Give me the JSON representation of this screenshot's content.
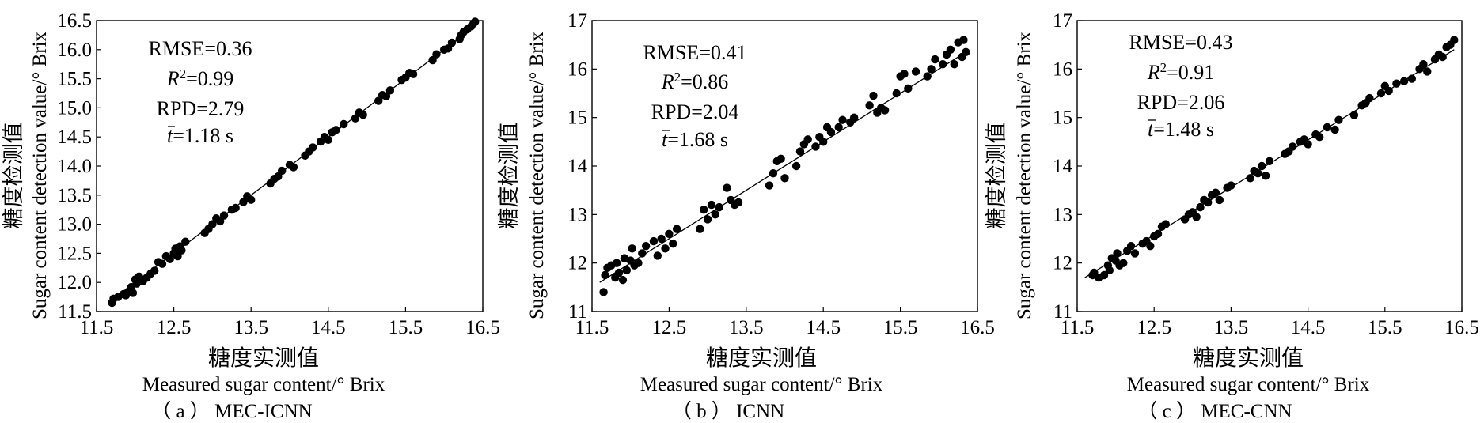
{
  "figure": {
    "panels": [
      {
        "caption": "（ a ）  MEC-ICNN",
        "stats": {
          "rmse": "RMSE=0.36",
          "r2_sym": "R",
          "r2_val": "=0.99",
          "rpd": "RPD=2.79",
          "t_sym": "t",
          "t_val": "=1.18 s"
        },
        "xlabel_cn": "糖度实测值",
        "xlabel_en": "Measured sugar content/° Brix",
        "ylabel_cn": "糖度检测值",
        "ylabel_en": "Sugar content detection value/° Brix",
        "xtick_labels": [
          "11.5",
          "12.5",
          "13.5",
          "14.5",
          "15.5",
          "16.5"
        ],
        "ytick_labels": [
          "11.5",
          "12.0",
          "12.5",
          "13.0",
          "13.5",
          "14.0",
          "14.5",
          "15.0",
          "15.5",
          "16.0",
          "16.5"
        ]
      },
      {
        "caption": "（ b ）  ICNN",
        "stats": {
          "rmse": "RMSE=0.41",
          "r2_sym": "R",
          "r2_val": "=0.86",
          "rpd": "RPD=2.04",
          "t_sym": "t",
          "t_val": "=1.68 s"
        },
        "xlabel_cn": "糖度实测值",
        "xlabel_en": "Measured sugar content/° Brix",
        "ylabel_cn": "糖度检测值",
        "ylabel_en": "Sugar content detection value/° Brix",
        "xtick_labels": [
          "11.5",
          "12.5",
          "13.5",
          "14.5",
          "15.5",
          "16.5"
        ],
        "ytick_labels": [
          "11",
          "12",
          "13",
          "14",
          "15",
          "16",
          "17"
        ]
      },
      {
        "caption": "（ c ）  MEC-CNN",
        "stats": {
          "rmse": "RMSE=0.43",
          "r2_sym": "R",
          "r2_val": "=0.91",
          "rpd": "RPD=2.06",
          "t_sym": "t",
          "t_val": "=1.48 s"
        },
        "xlabel_cn": "糖度实测值",
        "xlabel_en": "Measured sugar content/° Brix",
        "ylabel_cn": "糖度检测值",
        "ylabel_en": "Sugar content detection value/° Brix",
        "xtick_labels": [
          "11.5",
          "12.5",
          "13.5",
          "14.5",
          "15.5",
          "16.5"
        ],
        "ytick_labels": [
          "11",
          "12",
          "13",
          "14",
          "15",
          "16",
          "17"
        ]
      }
    ]
  },
  "chart_data": [
    {
      "type": "scatter",
      "title": "MEC-ICNN",
      "xlabel": "Measured sugar content/° Brix",
      "ylabel": "Sugar content detection value/° Brix",
      "xlim": [
        11.5,
        16.5
      ],
      "ylim": [
        11.5,
        16.5
      ],
      "xticks": [
        11.5,
        12.5,
        13.5,
        14.5,
        15.5,
        16.5
      ],
      "yticks": [
        11.5,
        12.0,
        12.5,
        13.0,
        13.5,
        14.0,
        14.5,
        15.0,
        15.5,
        16.0,
        16.5
      ],
      "annotations": [
        "RMSE=0.36",
        "R2=0.99",
        "RPD=2.79",
        "t=1.18 s"
      ],
      "fit_line": {
        "x": [
          11.7,
          16.4
        ],
        "y": [
          11.7,
          16.4
        ]
      },
      "marker_color": "#000000",
      "points": [
        [
          11.7,
          11.65
        ],
        [
          11.72,
          11.72
        ],
        [
          11.78,
          11.75
        ],
        [
          11.85,
          11.8
        ],
        [
          11.88,
          11.78
        ],
        [
          11.92,
          11.85
        ],
        [
          11.95,
          11.92
        ],
        [
          11.97,
          11.82
        ],
        [
          12.0,
          12.05
        ],
        [
          12.02,
          11.98
        ],
        [
          12.05,
          12.1
        ],
        [
          12.1,
          12.02
        ],
        [
          12.15,
          12.08
        ],
        [
          12.2,
          12.15
        ],
        [
          12.25,
          12.2
        ],
        [
          12.3,
          12.35
        ],
        [
          12.35,
          12.32
        ],
        [
          12.4,
          12.45
        ],
        [
          12.45,
          12.4
        ],
        [
          12.5,
          12.5
        ],
        [
          12.52,
          12.58
        ],
        [
          12.55,
          12.45
        ],
        [
          12.58,
          12.62
        ],
        [
          12.6,
          12.55
        ],
        [
          12.65,
          12.7
        ],
        [
          12.9,
          12.85
        ],
        [
          12.95,
          12.92
        ],
        [
          13.0,
          13.0
        ],
        [
          13.05,
          13.1
        ],
        [
          13.1,
          13.05
        ],
        [
          13.15,
          13.15
        ],
        [
          13.25,
          13.25
        ],
        [
          13.3,
          13.28
        ],
        [
          13.4,
          13.38
        ],
        [
          13.45,
          13.48
        ],
        [
          13.5,
          13.42
        ],
        [
          13.75,
          13.7
        ],
        [
          13.8,
          13.78
        ],
        [
          13.85,
          13.82
        ],
        [
          13.9,
          13.92
        ],
        [
          14.0,
          14.02
        ],
        [
          14.05,
          13.98
        ],
        [
          14.2,
          14.18
        ],
        [
          14.25,
          14.25
        ],
        [
          14.3,
          14.32
        ],
        [
          14.4,
          14.42
        ],
        [
          14.45,
          14.5
        ],
        [
          14.5,
          14.45
        ],
        [
          14.55,
          14.58
        ],
        [
          14.6,
          14.62
        ],
        [
          14.7,
          14.72
        ],
        [
          14.85,
          14.82
        ],
        [
          14.9,
          14.92
        ],
        [
          14.95,
          14.88
        ],
        [
          15.15,
          15.12
        ],
        [
          15.2,
          15.22
        ],
        [
          15.25,
          15.2
        ],
        [
          15.3,
          15.3
        ],
        [
          15.45,
          15.48
        ],
        [
          15.5,
          15.52
        ],
        [
          15.55,
          15.6
        ],
        [
          15.6,
          15.58
        ],
        [
          15.85,
          15.82
        ],
        [
          15.9,
          15.92
        ],
        [
          16.0,
          16.0
        ],
        [
          16.05,
          16.02
        ],
        [
          16.1,
          16.12
        ],
        [
          16.2,
          16.18
        ],
        [
          16.22,
          16.25
        ],
        [
          16.25,
          16.3
        ],
        [
          16.3,
          16.35
        ],
        [
          16.35,
          16.4
        ],
        [
          16.38,
          16.45
        ],
        [
          16.4,
          16.48
        ]
      ]
    },
    {
      "type": "scatter",
      "title": "ICNN",
      "xlabel": "Measured sugar content/° Brix",
      "ylabel": "Sugar content detection value/° Brix",
      "xlim": [
        11.5,
        16.5
      ],
      "ylim": [
        11,
        17
      ],
      "xticks": [
        11.5,
        12.5,
        13.5,
        14.5,
        15.5,
        16.5
      ],
      "yticks": [
        11,
        12,
        13,
        14,
        15,
        16,
        17
      ],
      "annotations": [
        "RMSE=0.41",
        "R2=0.86",
        "RPD=2.04",
        "t=1.68 s"
      ],
      "fit_line": {
        "x": [
          11.6,
          16.3
        ],
        "y": [
          11.6,
          16.3
        ]
      },
      "marker_color": "#000000",
      "points": [
        [
          11.65,
          11.4
        ],
        [
          11.67,
          11.75
        ],
        [
          11.7,
          11.9
        ],
        [
          11.75,
          11.95
        ],
        [
          11.8,
          11.7
        ],
        [
          11.82,
          12.0
        ],
        [
          11.85,
          11.8
        ],
        [
          11.9,
          11.65
        ],
        [
          11.92,
          12.1
        ],
        [
          11.95,
          11.85
        ],
        [
          12.0,
          12.05
        ],
        [
          12.02,
          12.3
        ],
        [
          12.05,
          11.95
        ],
        [
          12.1,
          12.0
        ],
        [
          12.15,
          12.2
        ],
        [
          12.2,
          12.35
        ],
        [
          12.3,
          12.45
        ],
        [
          12.35,
          12.15
        ],
        [
          12.4,
          12.5
        ],
        [
          12.45,
          12.3
        ],
        [
          12.5,
          12.6
        ],
        [
          12.55,
          12.4
        ],
        [
          12.6,
          12.7
        ],
        [
          12.9,
          12.7
        ],
        [
          12.95,
          13.1
        ],
        [
          13.0,
          12.9
        ],
        [
          13.05,
          13.2
        ],
        [
          13.1,
          13.0
        ],
        [
          13.15,
          13.15
        ],
        [
          13.25,
          13.55
        ],
        [
          13.3,
          13.3
        ],
        [
          13.35,
          13.2
        ],
        [
          13.4,
          13.25
        ],
        [
          13.8,
          13.6
        ],
        [
          13.85,
          13.85
        ],
        [
          13.9,
          14.1
        ],
        [
          13.95,
          14.15
        ],
        [
          14.0,
          13.75
        ],
        [
          14.15,
          14.0
        ],
        [
          14.2,
          14.3
        ],
        [
          14.25,
          14.45
        ],
        [
          14.3,
          14.55
        ],
        [
          14.4,
          14.4
        ],
        [
          14.45,
          14.6
        ],
        [
          14.5,
          14.5
        ],
        [
          14.55,
          14.8
        ],
        [
          14.6,
          14.7
        ],
        [
          14.7,
          14.8
        ],
        [
          14.75,
          14.95
        ],
        [
          14.85,
          14.9
        ],
        [
          14.9,
          15.0
        ],
        [
          15.1,
          15.25
        ],
        [
          15.15,
          15.45
        ],
        [
          15.2,
          15.1
        ],
        [
          15.25,
          15.2
        ],
        [
          15.3,
          15.15
        ],
        [
          15.45,
          15.5
        ],
        [
          15.5,
          15.85
        ],
        [
          15.55,
          15.9
        ],
        [
          15.6,
          15.6
        ],
        [
          15.7,
          15.95
        ],
        [
          15.85,
          15.85
        ],
        [
          15.9,
          16.0
        ],
        [
          15.95,
          16.2
        ],
        [
          16.05,
          16.1
        ],
        [
          16.1,
          16.3
        ],
        [
          16.15,
          16.4
        ],
        [
          16.2,
          16.1
        ],
        [
          16.25,
          16.55
        ],
        [
          16.3,
          16.25
        ],
        [
          16.32,
          16.6
        ],
        [
          16.35,
          16.35
        ]
      ]
    },
    {
      "type": "scatter",
      "title": "MEC-CNN",
      "xlabel": "Measured sugar content/° Brix",
      "ylabel": "Sugar content detection value/° Brix",
      "xlim": [
        11.5,
        16.5
      ],
      "ylim": [
        11,
        17
      ],
      "xticks": [
        11.5,
        12.5,
        13.5,
        14.5,
        15.5,
        16.5
      ],
      "yticks": [
        11,
        12,
        13,
        14,
        15,
        16,
        17
      ],
      "annotations": [
        "RMSE=0.43",
        "R2=0.91",
        "RPD=2.06",
        "t=1.48 s"
      ],
      "fit_line": {
        "x": [
          11.6,
          16.4
        ],
        "y": [
          11.7,
          16.4
        ]
      },
      "marker_color": "#000000",
      "points": [
        [
          11.7,
          11.75
        ],
        [
          11.72,
          11.8
        ],
        [
          11.78,
          11.7
        ],
        [
          11.85,
          11.75
        ],
        [
          11.9,
          11.95
        ],
        [
          11.92,
          11.85
        ],
        [
          11.95,
          12.1
        ],
        [
          12.0,
          12.05
        ],
        [
          12.02,
          12.2
        ],
        [
          12.05,
          11.95
        ],
        [
          12.1,
          12.0
        ],
        [
          12.15,
          12.25
        ],
        [
          12.2,
          12.35
        ],
        [
          12.25,
          12.2
        ],
        [
          12.35,
          12.4
        ],
        [
          12.4,
          12.45
        ],
        [
          12.45,
          12.35
        ],
        [
          12.5,
          12.55
        ],
        [
          12.55,
          12.6
        ],
        [
          12.6,
          12.75
        ],
        [
          12.65,
          12.8
        ],
        [
          12.9,
          12.9
        ],
        [
          12.95,
          13.0
        ],
        [
          13.0,
          13.05
        ],
        [
          13.05,
          12.95
        ],
        [
          13.1,
          13.15
        ],
        [
          13.15,
          13.3
        ],
        [
          13.2,
          13.25
        ],
        [
          13.25,
          13.4
        ],
        [
          13.3,
          13.45
        ],
        [
          13.35,
          13.3
        ],
        [
          13.45,
          13.55
        ],
        [
          13.5,
          13.6
        ],
        [
          13.75,
          13.75
        ],
        [
          13.8,
          13.9
        ],
        [
          13.85,
          13.85
        ],
        [
          13.9,
          14.0
        ],
        [
          13.95,
          13.8
        ],
        [
          14.0,
          14.1
        ],
        [
          14.2,
          14.25
        ],
        [
          14.25,
          14.3
        ],
        [
          14.3,
          14.4
        ],
        [
          14.4,
          14.5
        ],
        [
          14.45,
          14.55
        ],
        [
          14.5,
          14.45
        ],
        [
          14.6,
          14.65
        ],
        [
          14.65,
          14.6
        ],
        [
          14.75,
          14.8
        ],
        [
          14.85,
          14.75
        ],
        [
          14.9,
          14.95
        ],
        [
          15.1,
          15.05
        ],
        [
          15.2,
          15.25
        ],
        [
          15.25,
          15.3
        ],
        [
          15.3,
          15.4
        ],
        [
          15.45,
          15.5
        ],
        [
          15.5,
          15.65
        ],
        [
          15.55,
          15.55
        ],
        [
          15.65,
          15.7
        ],
        [
          15.75,
          15.75
        ],
        [
          15.85,
          15.8
        ],
        [
          15.95,
          16.0
        ],
        [
          16.0,
          16.1
        ],
        [
          16.05,
          15.95
        ],
        [
          16.15,
          16.2
        ],
        [
          16.2,
          16.3
        ],
        [
          16.25,
          16.25
        ],
        [
          16.3,
          16.45
        ],
        [
          16.35,
          16.5
        ],
        [
          16.4,
          16.6
        ]
      ]
    }
  ]
}
